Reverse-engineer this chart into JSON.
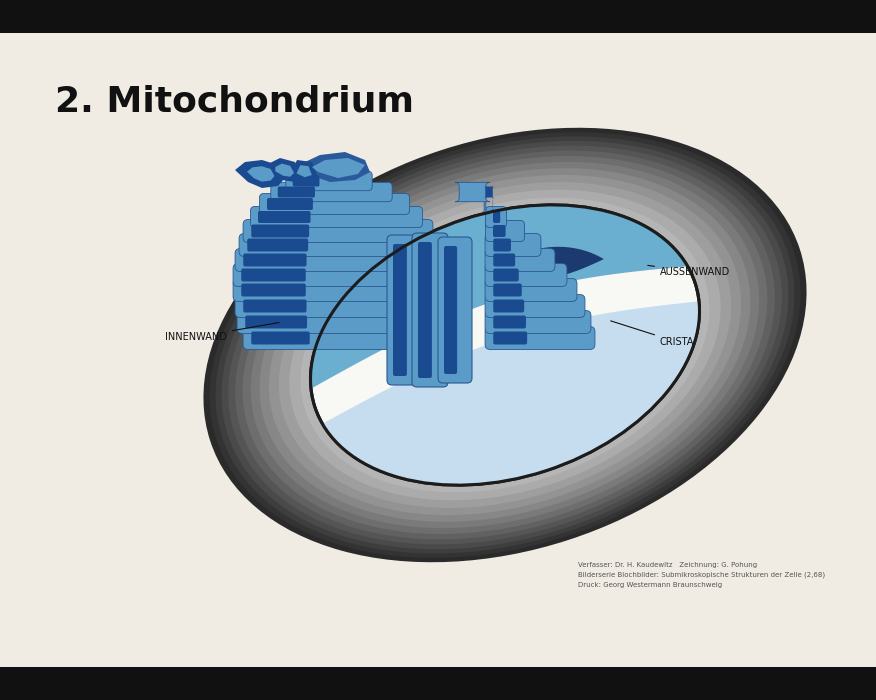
{
  "title": "2. Mitochondrium",
  "title_fontsize": 26,
  "background_color": "#f0ece4",
  "rod_color": "#111111",
  "label_innenwand": "INNENWAND",
  "label_crista": "CRISTA",
  "label_aussenwand": "AUSSENWAND",
  "label_fs": 7,
  "credit_line1": "Verfasser: Dr. H. Kaudewitz   Zeichnung: G. Pohung",
  "credit_line2": "Bilderserie Biochbilder: Submikroskopische Strukturen der Zelle (2,68)",
  "credit_line3": "Druck: Georg Westermann Braunschweig",
  "credit_fs": 5,
  "outer_dark1": "#2e2e2e",
  "outer_dark2": "#3c3c3c",
  "outer_mid1": "#525252",
  "outer_mid2": "#686868",
  "outer_mid3": "#787878",
  "outer_mid4": "#888888",
  "outer_light1": "#989898",
  "outer_light2": "#a8a8a8",
  "outer_light3": "#b8b8b8",
  "inner_white": "#f8f8f4",
  "matrix_blue": "#6aaed0",
  "matrix_blue2": "#7bbcdc",
  "dark_blue": "#1a3a70",
  "dark_blue2": "#1e4888",
  "crista_light": "#5b9bc8",
  "crista_dark": "#1a4a90",
  "crista_outline": "#2a5890"
}
